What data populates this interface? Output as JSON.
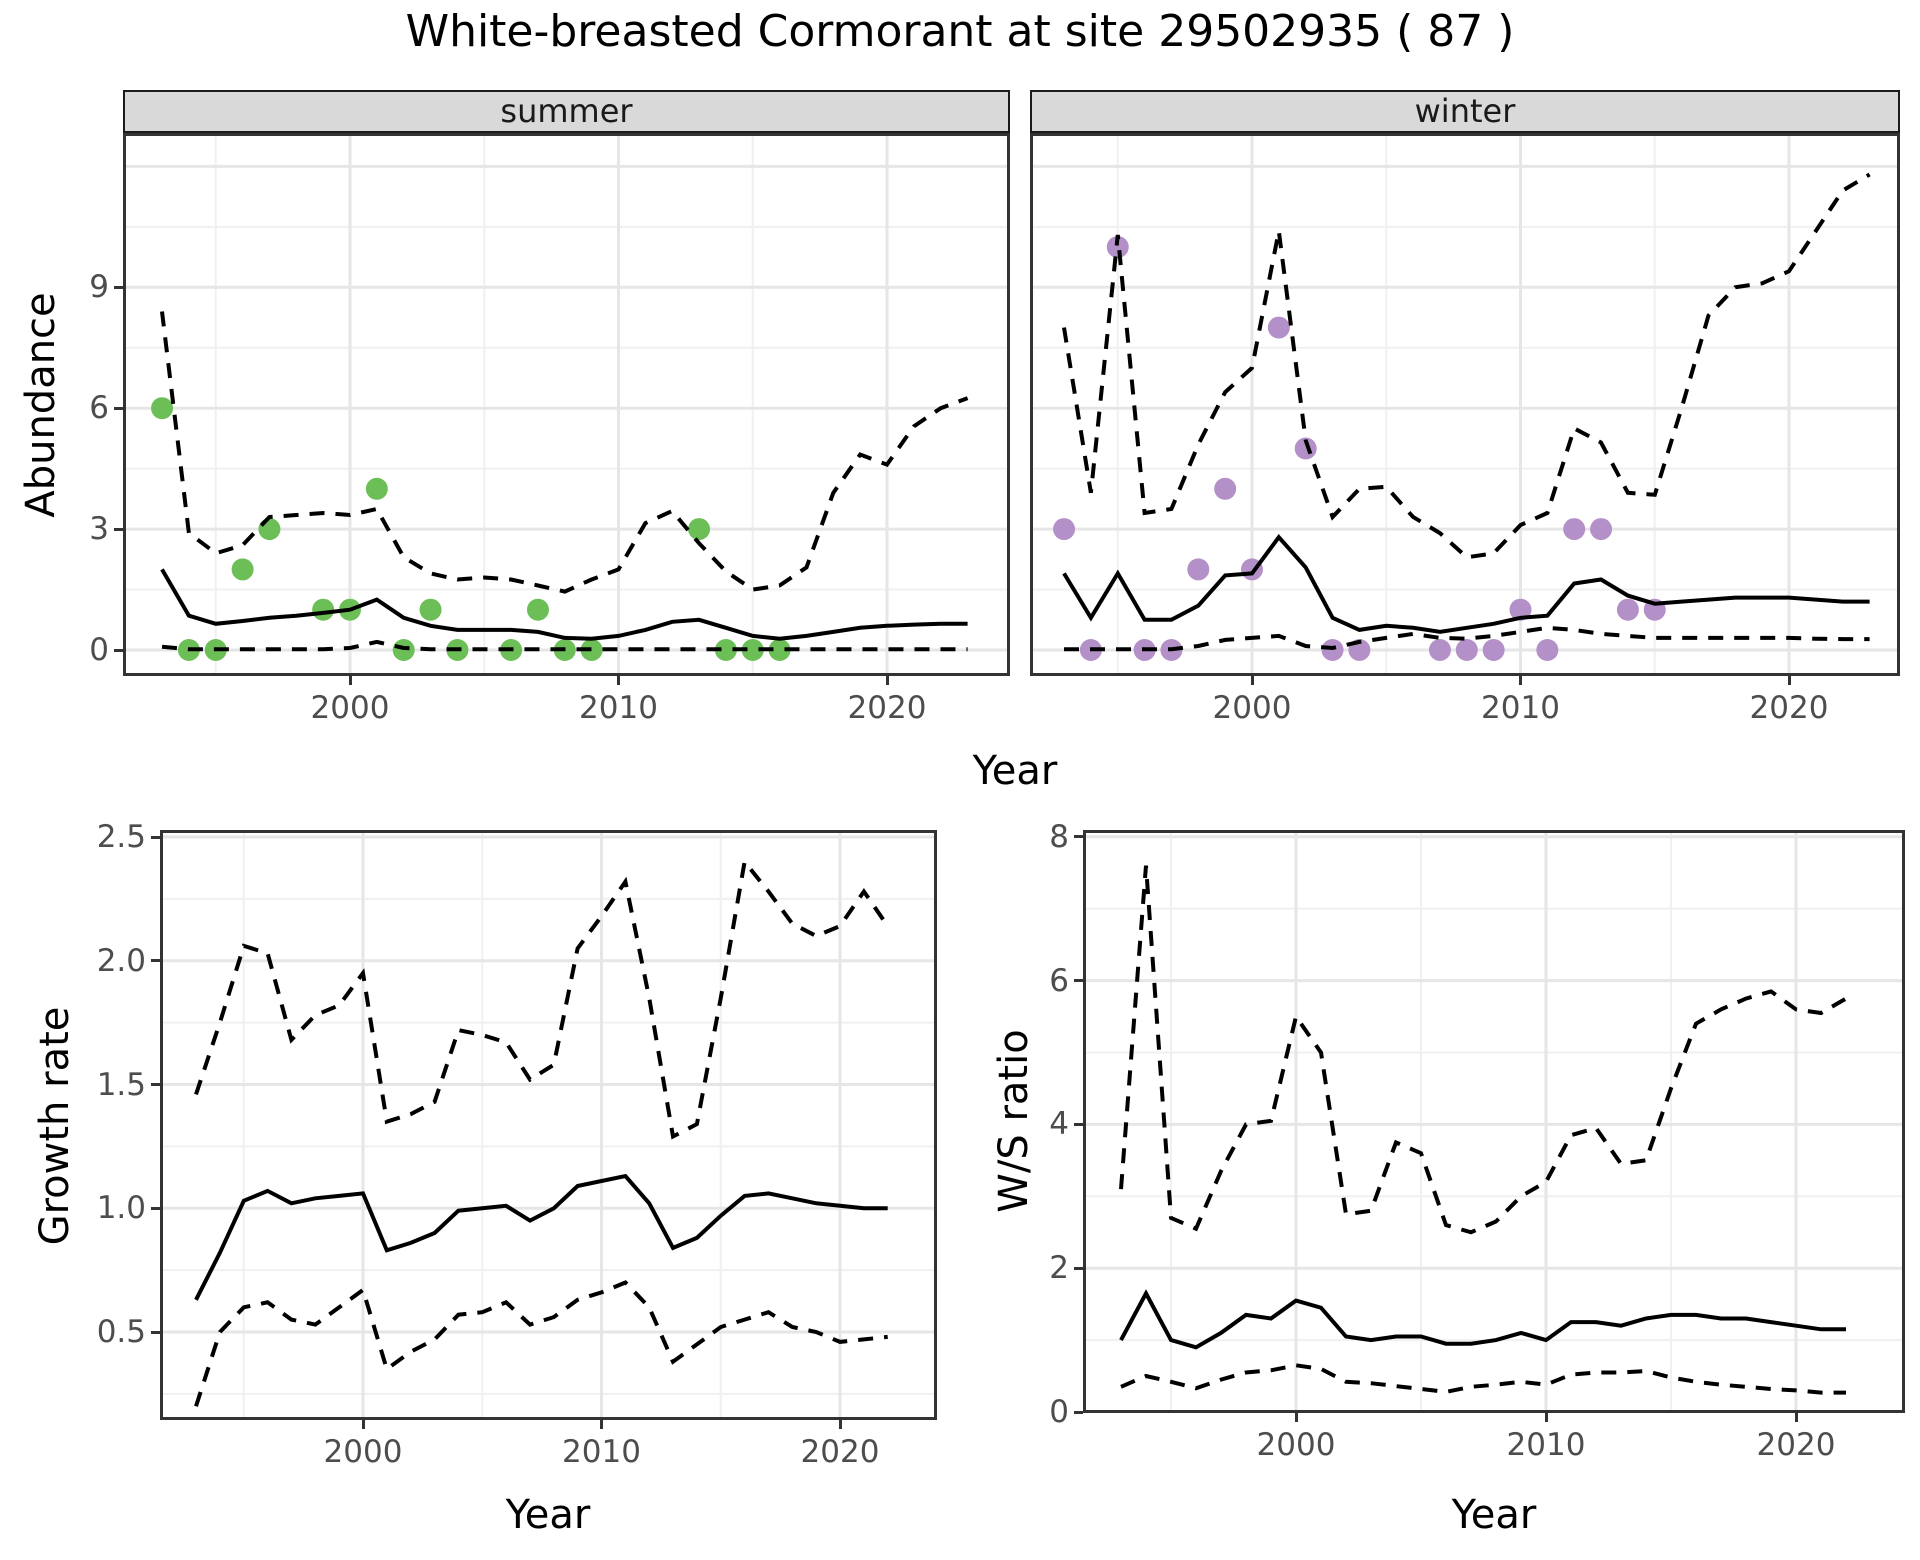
{
  "title": "White-breasted Cormorant at site 29502935 ( 87 )",
  "axis": {
    "abundance": "Abundance",
    "growth_rate": "Growth rate",
    "ws_ratio": "W/S ratio",
    "year": "Year"
  },
  "facets": [
    "summer",
    "winter"
  ],
  "colors": {
    "summer_points": "#6cbf57",
    "winter_points": "#b490c8",
    "line": "#000000",
    "grid_major": "#e6e6e6",
    "grid_minor": "#f0f0f0",
    "panel_border": "#333333",
    "strip_bg": "#d9d9d9",
    "tick_text": "#4d4d4d"
  },
  "chart_data": [
    {
      "id": "abundance_summer",
      "type": "line",
      "facet_label": "summer",
      "ylabel": "Abundance",
      "xlabel": "Year",
      "x": {
        "ticks": [
          2000,
          2010,
          2020
        ],
        "tick_labels": [
          "2000",
          "2010",
          "2020"
        ]
      },
      "y": {
        "ticks": [
          0,
          3,
          6,
          9
        ],
        "tick_labels": [
          "0",
          "3",
          "6",
          "9"
        ],
        "grid_major": [
          0,
          3,
          6,
          9,
          12
        ]
      },
      "years": [
        1993,
        1994,
        1995,
        1996,
        1997,
        1998,
        1999,
        2000,
        2001,
        2002,
        2003,
        2004,
        2005,
        2006,
        2007,
        2008,
        2009,
        2010,
        2011,
        2012,
        2013,
        2014,
        2015,
        2016,
        2017,
        2018,
        2019,
        2020,
        2021,
        2022,
        2023
      ],
      "series": [
        {
          "name": "median",
          "style": "solid",
          "values": [
            2.0,
            0.85,
            0.65,
            0.72,
            0.8,
            0.85,
            0.92,
            1.0,
            1.25,
            0.8,
            0.6,
            0.5,
            0.5,
            0.5,
            0.45,
            0.3,
            0.28,
            0.35,
            0.5,
            0.7,
            0.75,
            0.55,
            0.35,
            0.28,
            0.35,
            0.45,
            0.55,
            0.6,
            0.63,
            0.65,
            0.65
          ]
        },
        {
          "name": "upper_ci",
          "style": "dashed",
          "values": [
            8.4,
            2.9,
            2.4,
            2.6,
            3.3,
            3.35,
            3.4,
            3.35,
            3.5,
            2.3,
            1.9,
            1.75,
            1.8,
            1.75,
            1.6,
            1.45,
            1.75,
            2.0,
            3.15,
            3.45,
            2.65,
            1.95,
            1.5,
            1.6,
            2.05,
            3.9,
            4.85,
            4.6,
            5.55,
            6.0,
            6.25
          ]
        },
        {
          "name": "lower_ci",
          "style": "dashed",
          "values": [
            0.08,
            0.02,
            0.02,
            0.02,
            0.02,
            0.02,
            0.02,
            0.05,
            0.2,
            0.05,
            0.02,
            0.02,
            0.02,
            0.02,
            0.02,
            0.02,
            0.02,
            0.02,
            0.02,
            0.02,
            0.02,
            0.02,
            0.02,
            0.02,
            0.02,
            0.02,
            0.02,
            0.02,
            0.02,
            0.02,
            0.02
          ]
        }
      ],
      "observations": {
        "color": "#6cbf57",
        "points": [
          [
            1993,
            6
          ],
          [
            1994,
            0
          ],
          [
            1995,
            0
          ],
          [
            1996,
            2
          ],
          [
            1997,
            3
          ],
          [
            1999,
            1
          ],
          [
            2000,
            1
          ],
          [
            2001,
            4
          ],
          [
            2002,
            0
          ],
          [
            2003,
            1
          ],
          [
            2004,
            0
          ],
          [
            2006,
            0
          ],
          [
            2007,
            1
          ],
          [
            2008,
            0
          ],
          [
            2009,
            0
          ],
          [
            2013,
            3
          ],
          [
            2014,
            0
          ],
          [
            2015,
            0
          ],
          [
            2016,
            0
          ]
        ]
      }
    },
    {
      "id": "abundance_winter",
      "type": "line",
      "facet_label": "winter",
      "ylabel": "",
      "xlabel": "Year",
      "x": {
        "ticks": [
          2000,
          2010,
          2020
        ],
        "tick_labels": [
          "2000",
          "2010",
          "2020"
        ]
      },
      "y": {
        "ticks": [],
        "tick_labels": [],
        "grid_major": [
          0,
          3,
          6,
          9,
          12
        ]
      },
      "years": [
        1993,
        1994,
        1995,
        1996,
        1997,
        1998,
        1999,
        2000,
        2001,
        2002,
        2003,
        2004,
        2005,
        2006,
        2007,
        2008,
        2009,
        2010,
        2011,
        2012,
        2013,
        2014,
        2015,
        2016,
        2017,
        2018,
        2019,
        2020,
        2021,
        2022,
        2023
      ],
      "series": [
        {
          "name": "median",
          "style": "solid",
          "values": [
            1.9,
            0.8,
            1.9,
            0.75,
            0.75,
            1.1,
            1.85,
            1.9,
            2.8,
            2.05,
            0.8,
            0.5,
            0.6,
            0.55,
            0.45,
            0.55,
            0.65,
            0.8,
            0.85,
            1.65,
            1.75,
            1.35,
            1.15,
            1.2,
            1.25,
            1.3,
            1.3,
            1.3,
            1.25,
            1.2,
            1.2
          ]
        },
        {
          "name": "upper_ci",
          "style": "dashed",
          "values": [
            8.0,
            3.9,
            10.3,
            3.4,
            3.5,
            5.1,
            6.4,
            7.0,
            10.4,
            5.2,
            3.3,
            4.0,
            4.05,
            3.3,
            2.9,
            2.3,
            2.4,
            3.1,
            3.4,
            5.5,
            5.15,
            3.9,
            3.85,
            6.0,
            8.3,
            9.0,
            9.1,
            9.4,
            10.4,
            11.4,
            11.8
          ]
        },
        {
          "name": "lower_ci",
          "style": "dashed",
          "values": [
            0.02,
            0.02,
            0.02,
            0.02,
            0.02,
            0.1,
            0.25,
            0.3,
            0.35,
            0.1,
            0.05,
            0.2,
            0.3,
            0.4,
            0.3,
            0.28,
            0.35,
            0.45,
            0.55,
            0.5,
            0.4,
            0.35,
            0.3,
            0.3,
            0.3,
            0.3,
            0.3,
            0.3,
            0.28,
            0.27,
            0.27
          ]
        }
      ],
      "observations": {
        "color": "#b490c8",
        "points": [
          [
            1993,
            3
          ],
          [
            1994,
            0
          ],
          [
            1995,
            10
          ],
          [
            1996,
            0
          ],
          [
            1997,
            0
          ],
          [
            1998,
            2
          ],
          [
            1999,
            4
          ],
          [
            2000,
            2
          ],
          [
            2001,
            8
          ],
          [
            2002,
            5
          ],
          [
            2003,
            0
          ],
          [
            2004,
            0
          ],
          [
            2007,
            0
          ],
          [
            2008,
            0
          ],
          [
            2009,
            0
          ],
          [
            2010,
            1
          ],
          [
            2011,
            0
          ],
          [
            2012,
            3
          ],
          [
            2013,
            3
          ],
          [
            2014,
            1
          ],
          [
            2015,
            1
          ]
        ]
      }
    },
    {
      "id": "growth_rate",
      "type": "line",
      "facet_label": "",
      "ylabel": "Growth rate",
      "xlabel": "Year",
      "x": {
        "ticks": [
          2000,
          2010,
          2020
        ],
        "tick_labels": [
          "2000",
          "2010",
          "2020"
        ]
      },
      "y": {
        "ticks": [
          0.5,
          1.0,
          1.5,
          2.0,
          2.5
        ],
        "tick_labels": [
          "0.5",
          "1.0",
          "1.5",
          "2.0",
          "2.5"
        ],
        "grid_major": [
          0.5,
          1.0,
          1.5,
          2.0,
          2.5
        ]
      },
      "years": [
        1993,
        1994,
        1995,
        1996,
        1997,
        1998,
        1999,
        2000,
        2001,
        2002,
        2003,
        2004,
        2005,
        2006,
        2007,
        2008,
        2009,
        2010,
        2011,
        2012,
        2013,
        2014,
        2015,
        2016,
        2017,
        2018,
        2019,
        2020,
        2021,
        2022
      ],
      "series": [
        {
          "name": "median",
          "style": "solid",
          "values": [
            0.63,
            0.82,
            1.03,
            1.07,
            1.02,
            1.04,
            1.05,
            1.06,
            0.83,
            0.86,
            0.9,
            0.99,
            1.0,
            1.01,
            0.95,
            1.0,
            1.09,
            1.11,
            1.13,
            1.02,
            0.84,
            0.88,
            0.97,
            1.05,
            1.06,
            1.04,
            1.02,
            1.01,
            1.0,
            1.0
          ]
        },
        {
          "name": "upper_ci",
          "style": "dashed",
          "values": [
            1.46,
            1.75,
            2.06,
            2.03,
            1.68,
            1.78,
            1.82,
            1.95,
            1.35,
            1.38,
            1.43,
            1.72,
            1.7,
            1.67,
            1.52,
            1.58,
            2.05,
            2.18,
            2.32,
            1.85,
            1.29,
            1.34,
            1.85,
            2.4,
            2.28,
            2.15,
            2.1,
            2.14,
            2.28,
            2.14
          ]
        },
        {
          "name": "lower_ci",
          "style": "dashed",
          "values": [
            0.2,
            0.5,
            0.6,
            0.62,
            0.55,
            0.53,
            0.6,
            0.67,
            0.35,
            0.42,
            0.47,
            0.57,
            0.58,
            0.62,
            0.53,
            0.56,
            0.63,
            0.66,
            0.7,
            0.6,
            0.38,
            0.45,
            0.52,
            0.55,
            0.58,
            0.52,
            0.5,
            0.46,
            0.47,
            0.48
          ]
        }
      ],
      "observations": {
        "color": "",
        "points": []
      }
    },
    {
      "id": "ws_ratio",
      "type": "line",
      "facet_label": "",
      "ylabel": "W/S ratio",
      "xlabel": "Year",
      "x": {
        "ticks": [
          2000,
          2010,
          2020
        ],
        "tick_labels": [
          "2000",
          "2010",
          "2020"
        ]
      },
      "y": {
        "ticks": [
          0,
          2,
          4,
          6,
          8
        ],
        "tick_labels": [
          "0",
          "2",
          "4",
          "6",
          "8"
        ],
        "grid_major": [
          0,
          2,
          4,
          6,
          8
        ]
      },
      "years": [
        1993,
        1994,
        1995,
        1996,
        1997,
        1998,
        1999,
        2000,
        2001,
        2002,
        2003,
        2004,
        2005,
        2006,
        2007,
        2008,
        2009,
        2010,
        2011,
        2012,
        2013,
        2014,
        2015,
        2016,
        2017,
        2018,
        2019,
        2020,
        2021,
        2022
      ],
      "series": [
        {
          "name": "median",
          "style": "solid",
          "values": [
            1.0,
            1.65,
            1.0,
            0.9,
            1.1,
            1.35,
            1.3,
            1.55,
            1.45,
            1.05,
            1.0,
            1.05,
            1.05,
            0.95,
            0.95,
            1.0,
            1.1,
            1.0,
            1.25,
            1.25,
            1.2,
            1.3,
            1.35,
            1.35,
            1.3,
            1.3,
            1.25,
            1.2,
            1.15,
            1.15
          ]
        },
        {
          "name": "upper_ci",
          "style": "dashed",
          "values": [
            3.1,
            7.6,
            2.7,
            2.55,
            3.35,
            4.0,
            4.05,
            5.5,
            5.0,
            2.75,
            2.8,
            3.75,
            3.6,
            2.6,
            2.5,
            2.65,
            3.0,
            3.2,
            3.85,
            3.95,
            3.45,
            3.5,
            4.5,
            5.4,
            5.6,
            5.75,
            5.85,
            5.6,
            5.55,
            5.75
          ]
        },
        {
          "name": "lower_ci",
          "style": "dashed",
          "values": [
            0.35,
            0.5,
            0.42,
            0.33,
            0.45,
            0.55,
            0.58,
            0.65,
            0.6,
            0.42,
            0.4,
            0.36,
            0.32,
            0.28,
            0.35,
            0.38,
            0.42,
            0.38,
            0.52,
            0.55,
            0.55,
            0.57,
            0.48,
            0.42,
            0.38,
            0.35,
            0.32,
            0.3,
            0.27,
            0.27
          ]
        }
      ],
      "observations": {
        "color": "",
        "points": []
      }
    }
  ]
}
